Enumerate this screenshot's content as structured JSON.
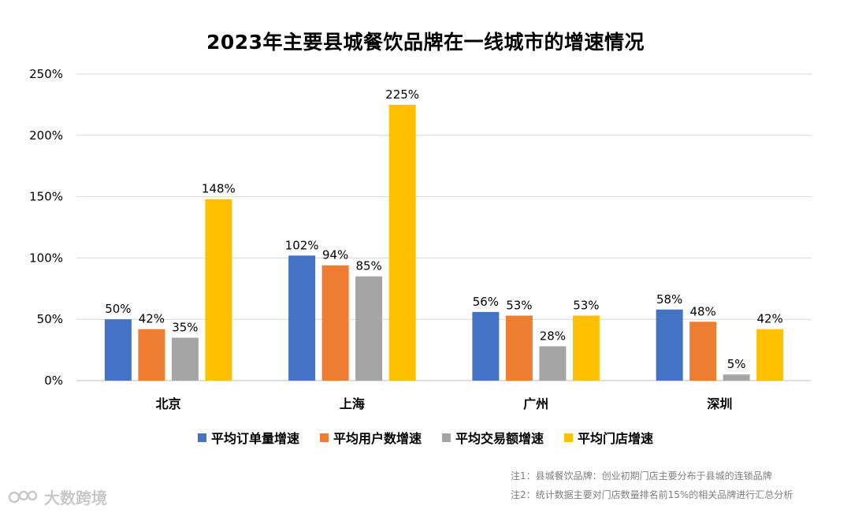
{
  "chart_data": {
    "type": "bar",
    "title": "2023年主要县城餐饮品牌在一线城市的增速情况",
    "categories": [
      "北京",
      "上海",
      "广州",
      "深圳"
    ],
    "series": [
      {
        "name": "平均订单量增速",
        "color": "#4472C4",
        "values": [
          50,
          102,
          56,
          58
        ],
        "labels": [
          "50%",
          "102%",
          "56%",
          "58%"
        ]
      },
      {
        "name": "平均用户数增速",
        "color": "#ED7D31",
        "values": [
          42,
          94,
          53,
          48
        ],
        "labels": [
          "42%",
          "94%",
          "53%",
          "48%"
        ]
      },
      {
        "name": "平均交易额增速",
        "color": "#A5A5A5",
        "values": [
          35,
          85,
          28,
          5
        ],
        "labels": [
          "35%",
          "85%",
          "28%",
          "5%"
        ]
      },
      {
        "name": "平均门店增速",
        "color": "#FFC000",
        "values": [
          148,
          225,
          53,
          42
        ],
        "labels": [
          "148%",
          "225%",
          "53%",
          "42%"
        ]
      }
    ],
    "ylim": [
      0,
      250
    ],
    "yticks": [
      "0%",
      "50%",
      "100%",
      "150%",
      "200%",
      "250%"
    ],
    "grid": true,
    "legend_position": "bottom"
  },
  "notes": [
    "注1：县城餐饮品牌：创业初期门店主要分布于县城的连锁品牌",
    "注2：统计数据主要对门店数量排名前15%的相关品牌进行汇总分析"
  ],
  "watermark": "大数跨境"
}
